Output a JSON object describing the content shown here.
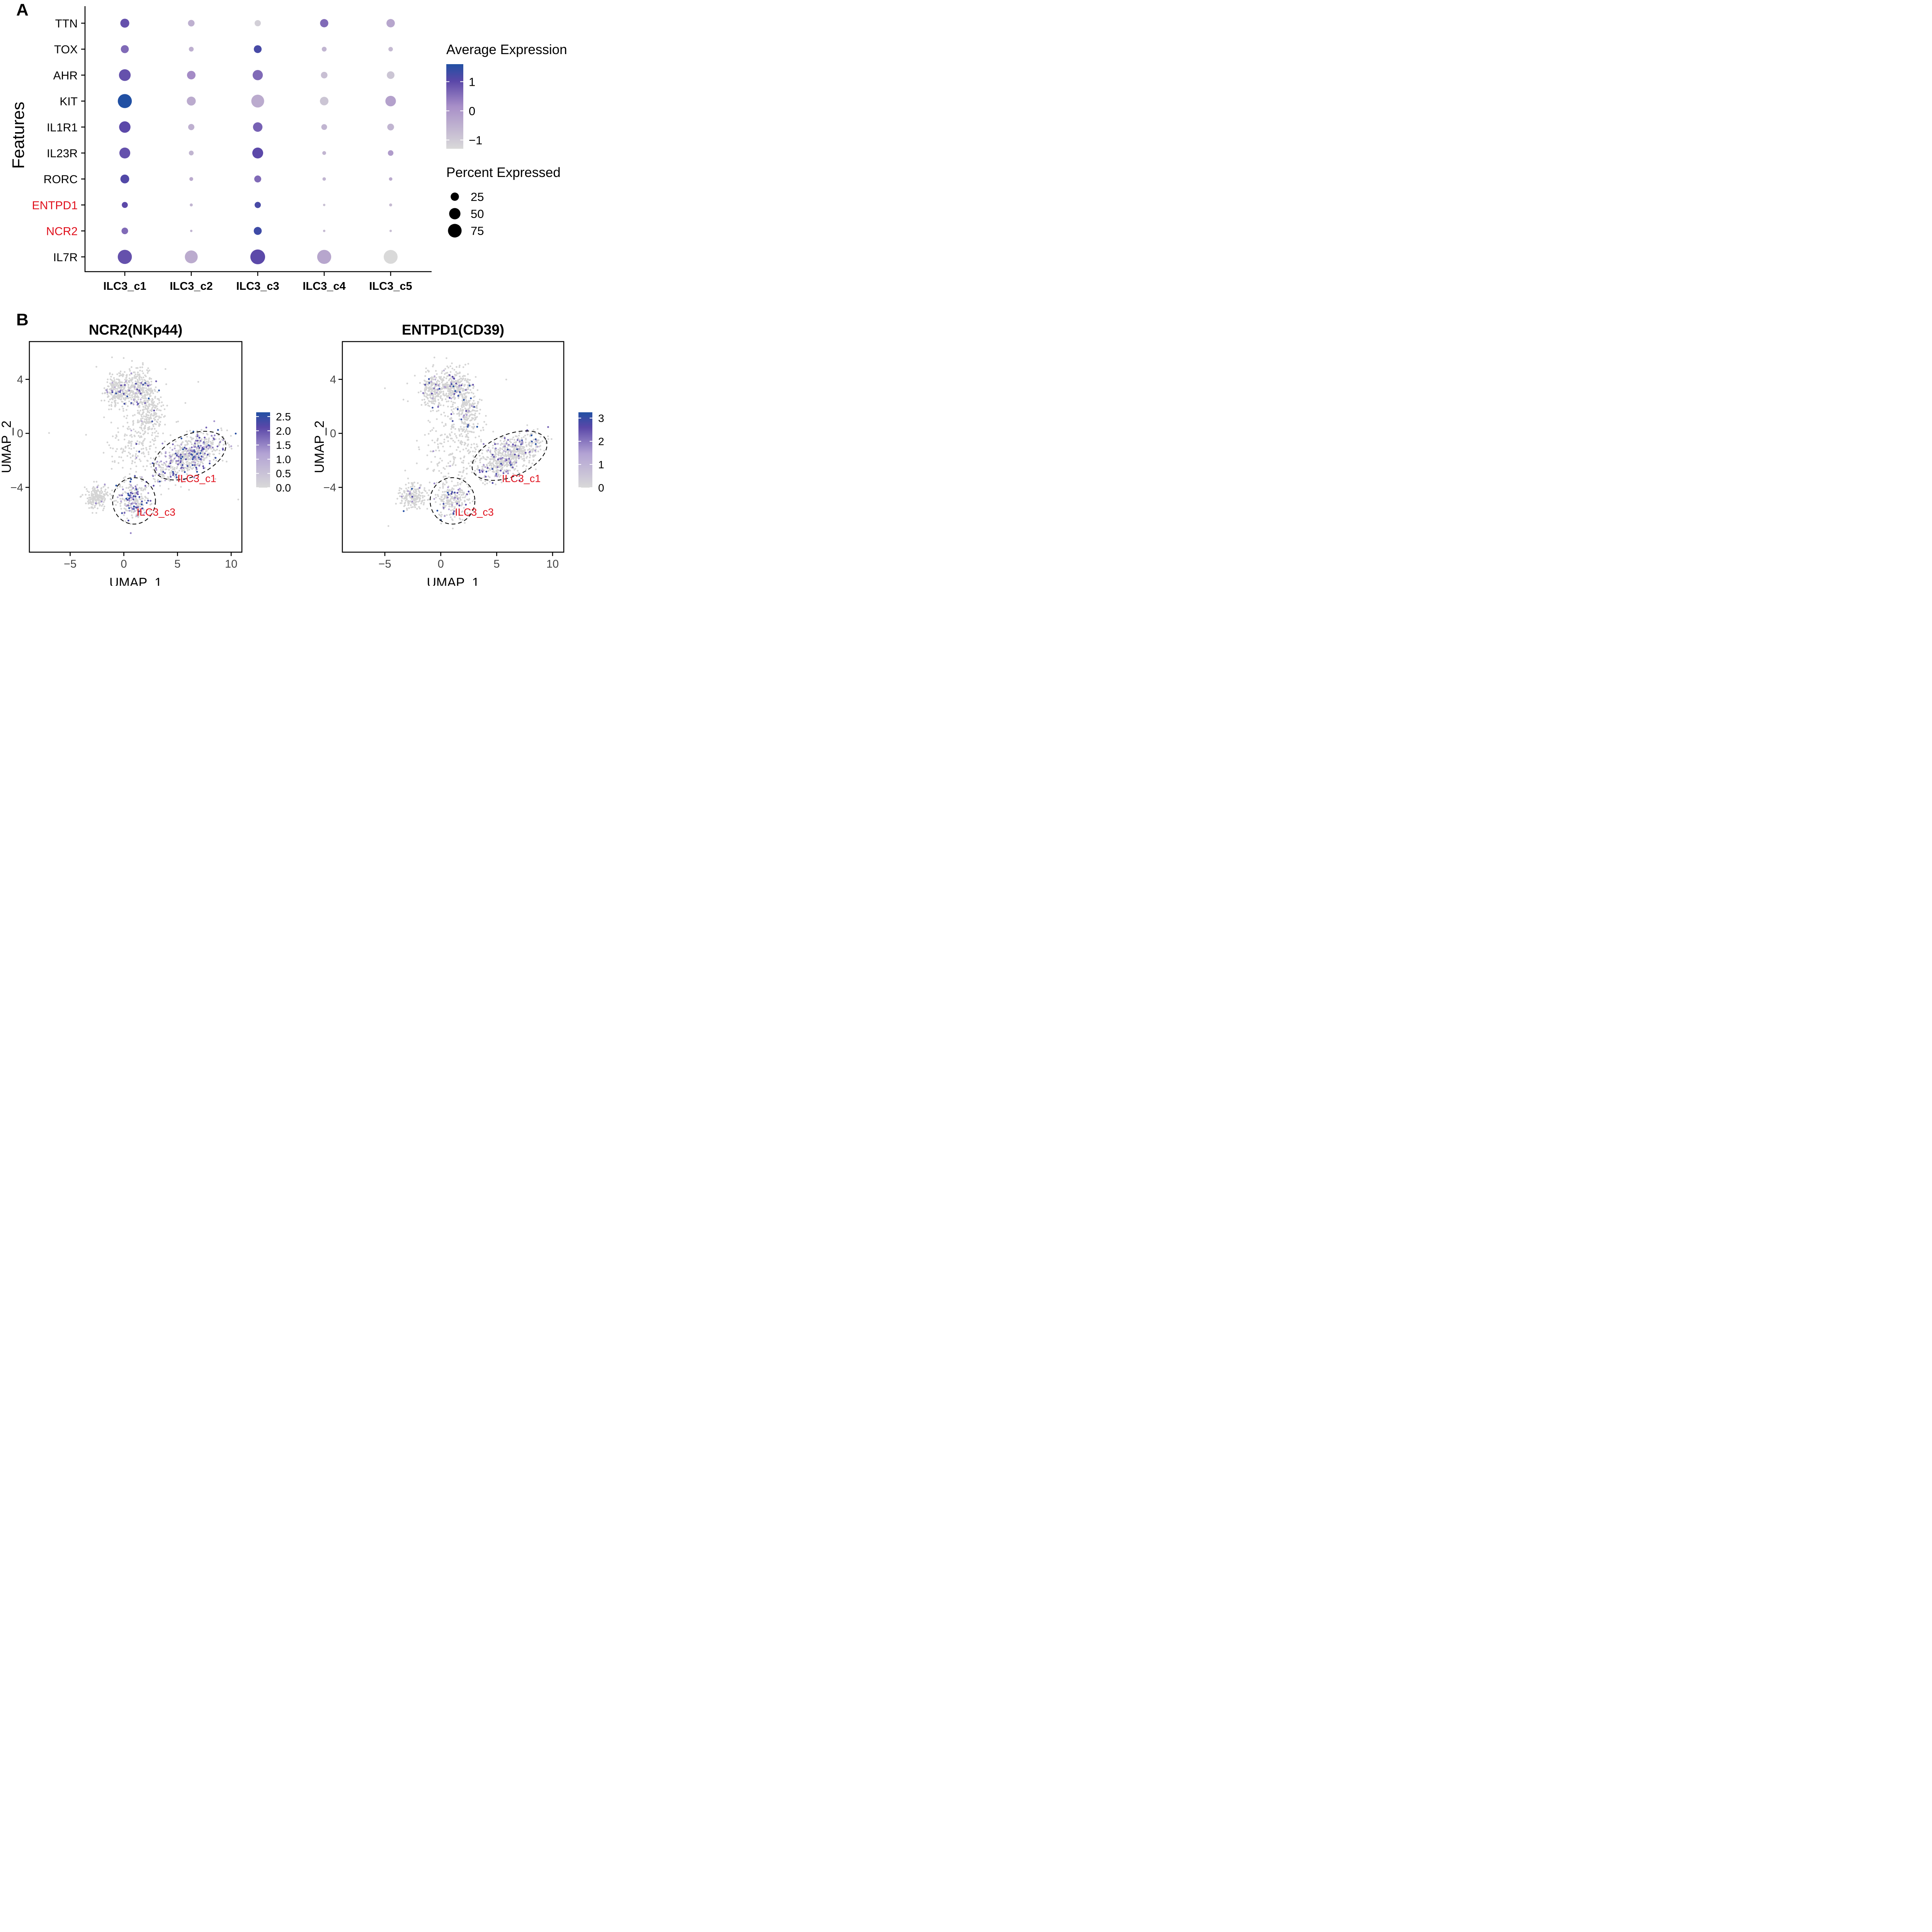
{
  "panel_labels": {
    "a": "A",
    "b": "B"
  },
  "colors": {
    "low": "#d9d9d9",
    "mid": "#a88fc8",
    "high": "#5a47a8",
    "max": "#2150a3",
    "highlight_text": "#e0101c",
    "axis": "#000000",
    "cell_grey": "#d4d4d4"
  },
  "chart_data": [
    {
      "type": "dot",
      "ylabel": "Features",
      "categories": [
        "ILC3_c1",
        "ILC3_c2",
        "ILC3_c3",
        "ILC3_c4",
        "ILC3_c5"
      ],
      "features": [
        "TTN",
        "TOX",
        "AHR",
        "KIT",
        "IL1R1",
        "IL23R",
        "RORC",
        "ENTPD1",
        "NCR2",
        "IL7R"
      ],
      "highlighted_features": [
        "ENTPD1",
        "NCR2"
      ],
      "avg_expression": [
        [
          0.9,
          -0.5,
          -1.1,
          0.6,
          -0.3
        ],
        [
          0.6,
          -0.5,
          1.2,
          -0.6,
          -0.7
        ],
        [
          0.9,
          0.2,
          0.6,
          -0.8,
          -0.9
        ],
        [
          1.6,
          -0.4,
          -0.4,
          -0.9,
          -0.2
        ],
        [
          1.0,
          -0.5,
          0.7,
          -0.6,
          -0.6
        ],
        [
          0.9,
          -0.6,
          1.0,
          -0.6,
          -0.1
        ],
        [
          1.1,
          -0.4,
          0.6,
          -0.6,
          -0.4
        ],
        [
          1.0,
          -0.6,
          1.2,
          -0.8,
          -0.7
        ],
        [
          0.6,
          -0.6,
          1.3,
          -0.7,
          -0.8
        ],
        [
          0.9,
          -0.4,
          1.0,
          -0.3,
          -1.3
        ]
      ],
      "pct_expressed": [
        [
          30,
          15,
          13,
          25,
          26
        ],
        [
          23,
          7,
          22,
          7,
          6
        ],
        [
          54,
          27,
          40,
          15,
          21
        ],
        [
          80,
          30,
          66,
          27,
          43
        ],
        [
          51,
          13,
          34,
          11,
          16
        ],
        [
          46,
          7,
          46,
          4,
          10
        ],
        [
          29,
          4,
          17,
          3,
          3
        ],
        [
          12,
          2,
          13,
          1,
          2
        ],
        [
          15,
          1,
          23,
          1,
          1
        ],
        [
          81,
          66,
          89,
          80,
          78
        ]
      ],
      "color_legend": {
        "title": "Average Expression",
        "ticks": [
          "1",
          "0",
          "−1"
        ],
        "tick_values": [
          1,
          0,
          -1
        ],
        "range": [
          -1.3,
          1.6
        ]
      },
      "size_legend": {
        "title": "Percent Expressed",
        "labels": [
          "25",
          "50",
          "75"
        ],
        "values": [
          25,
          50,
          75
        ]
      }
    },
    {
      "type": "scatter",
      "title": "NCR2(NKp44)",
      "xlabel": "UMAP_1",
      "ylabel": "UMAP_2",
      "xlim": [
        -8.8,
        11.0
      ],
      "ylim": [
        -8.8,
        6.8
      ],
      "xticks": [
        "−5",
        "0",
        "5",
        "10"
      ],
      "xtick_values": [
        -5,
        0,
        5,
        10
      ],
      "yticks": [
        "4",
        "0",
        "−4"
      ],
      "ytick_values": [
        4,
        0,
        -4
      ],
      "colorbar": {
        "ticks": [
          "2.5",
          "2.0",
          "1.5",
          "1.0",
          "0.5",
          "0.0"
        ],
        "tick_values": [
          2.5,
          2.0,
          1.5,
          1.0,
          0.5,
          0.0
        ],
        "max": 2.65
      },
      "annotations": [
        {
          "text": "ILC3_c1",
          "x": 6.8,
          "y": -3.6
        },
        {
          "text": "ILC3_c3",
          "x": 3.0,
          "y": -6.1
        }
      ],
      "ellipses": [
        {
          "cx": 6.15,
          "cy": -1.65,
          "rx": 3.55,
          "ry": 1.55,
          "angle_deg": 23
        },
        {
          "cx": 0.95,
          "cy": -5.0,
          "rx": 2.0,
          "ry": 1.72,
          "angle_deg": 0
        }
      ],
      "clusters": [
        {
          "name": "top-left",
          "cx": -0.55,
          "cy": 3.2,
          "sx": 0.65,
          "sy": 0.7,
          "n": 260,
          "expressing_fraction": 0.05
        },
        {
          "name": "top",
          "cx": 1.4,
          "cy": 3.4,
          "sx": 0.7,
          "sy": 0.65,
          "n": 280,
          "expressing_fraction": 0.06
        },
        {
          "name": "top-right",
          "cx": 2.4,
          "cy": 1.6,
          "sx": 0.55,
          "sy": 0.75,
          "n": 190,
          "expressing_fraction": 0.03
        },
        {
          "name": "middle",
          "cx": 1.3,
          "cy": -0.8,
          "sx": 1.35,
          "sy": 1.3,
          "n": 210,
          "expressing_fraction": 0.01
        },
        {
          "name": "c1",
          "cx": 6.15,
          "cy": -1.65,
          "sx": 1.6,
          "sy": 0.6,
          "angle_deg": 23,
          "n": 650,
          "expressing_fraction": 0.22
        },
        {
          "name": "c3",
          "cx": 0.9,
          "cy": -4.9,
          "sx": 0.75,
          "sy": 0.75,
          "n": 240,
          "expressing_fraction": 0.3
        },
        {
          "name": "left",
          "cx": -2.5,
          "cy": -4.7,
          "sx": 0.55,
          "sy": 0.45,
          "n": 190,
          "expressing_fraction": 0.02
        },
        {
          "name": "outliers",
          "cx": 0.5,
          "cy": -0.5,
          "sx": 3.5,
          "sy": 3.5,
          "n": 30,
          "expressing_fraction": 0.0
        }
      ]
    },
    {
      "type": "scatter",
      "title": "ENTPD1(CD39)",
      "xlabel": "UMAP_1",
      "ylabel": "UMAP_2",
      "xlim": [
        -8.8,
        11.0
      ],
      "ylim": [
        -8.8,
        6.8
      ],
      "xticks": [
        "−5",
        "0",
        "5",
        "10"
      ],
      "xtick_values": [
        -5,
        0,
        5,
        10
      ],
      "yticks": [
        "4",
        "0",
        "−4"
      ],
      "ytick_values": [
        4,
        0,
        -4
      ],
      "colorbar": {
        "ticks": [
          "3",
          "2",
          "1",
          "0"
        ],
        "tick_values": [
          3,
          2,
          1,
          0
        ],
        "max": 3.25
      },
      "annotations": [
        {
          "text": "ILC3_c1",
          "x": 7.2,
          "y": -3.6
        },
        {
          "text": "ILC3_c3",
          "x": 3.0,
          "y": -6.1
        }
      ],
      "ellipses": [
        {
          "cx": 6.15,
          "cy": -1.65,
          "rx": 3.55,
          "ry": 1.55,
          "angle_deg": 23
        },
        {
          "cx": 1.05,
          "cy": -5.0,
          "rx": 2.0,
          "ry": 1.72,
          "angle_deg": 0
        }
      ],
      "clusters": [
        {
          "name": "top-left",
          "cx": -0.55,
          "cy": 3.2,
          "sx": 0.65,
          "sy": 0.7,
          "n": 260,
          "expressing_fraction": 0.07
        },
        {
          "name": "top",
          "cx": 1.4,
          "cy": 3.4,
          "sx": 0.7,
          "sy": 0.65,
          "n": 280,
          "expressing_fraction": 0.08
        },
        {
          "name": "top-right",
          "cx": 2.4,
          "cy": 1.6,
          "sx": 0.55,
          "sy": 0.75,
          "n": 190,
          "expressing_fraction": 0.05
        },
        {
          "name": "middle",
          "cx": 1.3,
          "cy": -0.8,
          "sx": 1.35,
          "sy": 1.3,
          "n": 210,
          "expressing_fraction": 0.02
        },
        {
          "name": "c1",
          "cx": 6.15,
          "cy": -1.65,
          "sx": 1.6,
          "sy": 0.6,
          "angle_deg": 23,
          "n": 650,
          "expressing_fraction": 0.14
        },
        {
          "name": "c3",
          "cx": 1.05,
          "cy": -4.9,
          "sx": 0.75,
          "sy": 0.75,
          "n": 240,
          "expressing_fraction": 0.1
        },
        {
          "name": "left",
          "cx": -2.5,
          "cy": -4.7,
          "sx": 0.55,
          "sy": 0.45,
          "n": 190,
          "expressing_fraction": 0.03
        },
        {
          "name": "outliers",
          "cx": 0.5,
          "cy": -0.5,
          "sx": 3.5,
          "sy": 3.5,
          "n": 30,
          "expressing_fraction": 0.0
        }
      ]
    }
  ]
}
